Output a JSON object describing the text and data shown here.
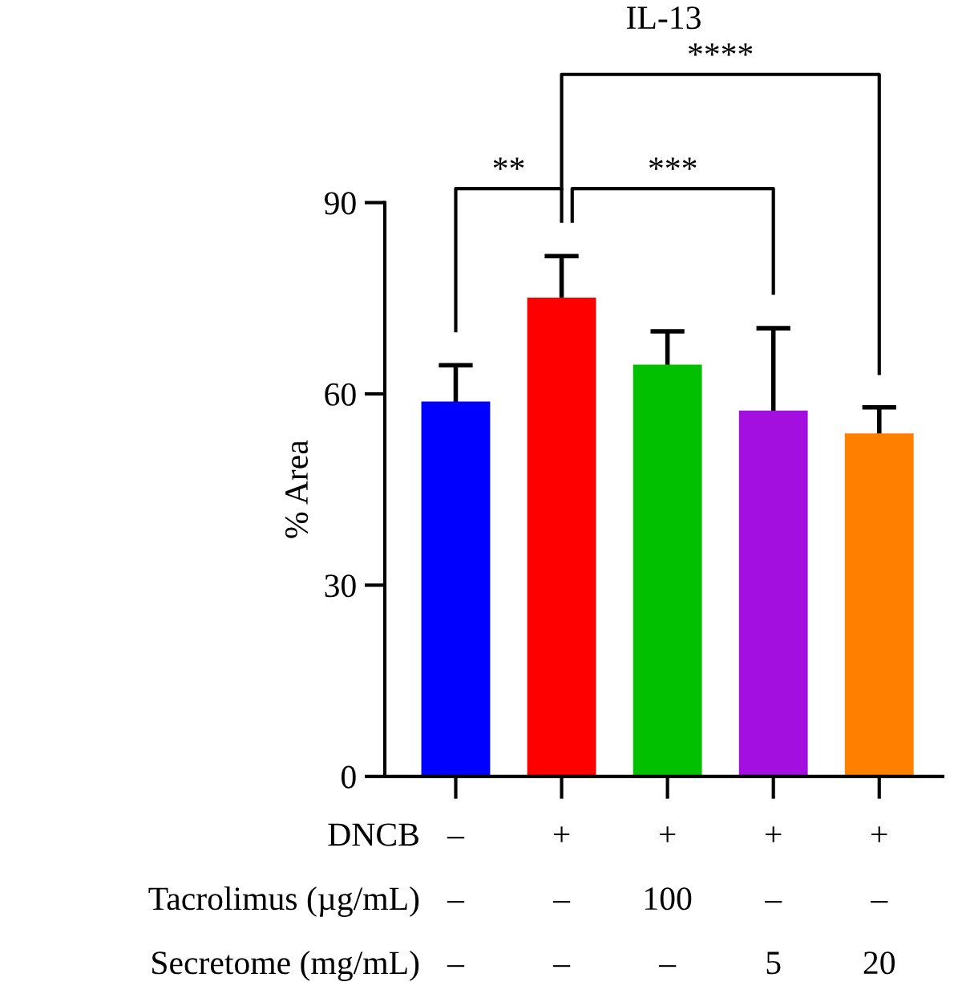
{
  "chart_data": {
    "type": "bar",
    "title": "IL-13",
    "ylabel": "% Area",
    "categories": [
      "–\n–\n–",
      "+\n–\n–",
      "+\n100\n–",
      "+\n–\n5",
      "+\n–\n20"
    ],
    "values": [
      58.8,
      75.1,
      64.6,
      57.4,
      53.8
    ],
    "colors": [
      "#0000ff",
      "#ff0000",
      "#00c000",
      "#a30fdf",
      "#ff8000"
    ],
    "errors": [
      5.7,
      6.5,
      5.2,
      12.9,
      4.1
    ],
    "ylim": [
      0,
      90
    ],
    "yticks": [
      0,
      30,
      60,
      90
    ],
    "grid": false,
    "annotations": [
      "DNCB",
      "Tacrolimus (µg/mL)",
      "Secretome (mg/mL)",
      "**",
      "***",
      "****"
    ]
  }
}
